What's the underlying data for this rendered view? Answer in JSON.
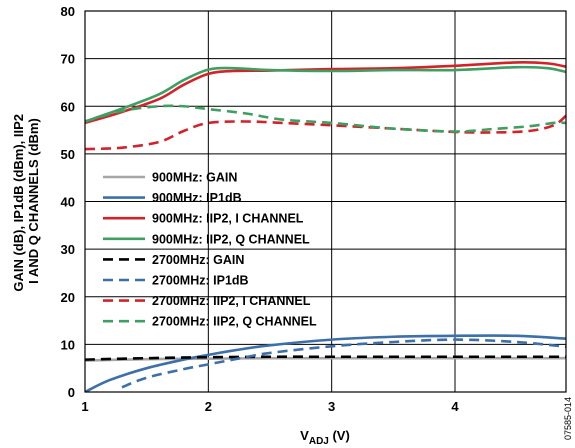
{
  "figure_id": "07585-014",
  "chart_data": {
    "type": "line",
    "xlabel_main": "V",
    "xlabel_sub": "ADJ",
    "xlabel_unit": " (V)",
    "ylabel_lines": [
      "GAIN (dB), IP1dB (dBm), IIP2",
      "I AND Q CHANNELS (dBm)"
    ],
    "xlim": [
      1,
      4.9
    ],
    "ylim": [
      0,
      80
    ],
    "x_ticks": [
      1,
      2,
      3,
      4
    ],
    "y_ticks": [
      0,
      10,
      20,
      30,
      40,
      50,
      60,
      70,
      80
    ],
    "grid": true,
    "legend_position": "center-left",
    "series": [
      {
        "name": "900MHz: GAIN",
        "color": "#a6a6a6",
        "dash": "solid",
        "x": [
          1.0,
          1.5,
          2.0,
          2.5,
          3.0,
          3.5,
          4.0,
          4.5,
          4.9
        ],
        "y": [
          6.6,
          6.9,
          7.0,
          7.1,
          7.1,
          7.1,
          7.1,
          7.1,
          7.1
        ]
      },
      {
        "name": "900MHz: IP1dB",
        "color": "#3d6fa8",
        "dash": "solid",
        "x": [
          1.0,
          1.2,
          1.5,
          1.8,
          2.0,
          2.2,
          2.5,
          3.0,
          3.5,
          4.0,
          4.5,
          4.9
        ],
        "y": [
          0,
          2.5,
          5.0,
          6.8,
          7.8,
          8.7,
          9.8,
          11.0,
          11.6,
          11.8,
          11.8,
          11.2
        ]
      },
      {
        "name": "900MHz: IIP2, I CHANNEL",
        "color": "#d2232a",
        "dash": "solid",
        "x": [
          1.0,
          1.3,
          1.6,
          1.8,
          2.0,
          2.2,
          2.5,
          3.0,
          3.5,
          4.0,
          4.5,
          4.75,
          4.9
        ],
        "y": [
          56.5,
          58.8,
          61.5,
          64.5,
          66.8,
          67.4,
          67.5,
          67.8,
          68.0,
          68.5,
          69.2,
          69.0,
          68.3
        ]
      },
      {
        "name": "900MHz: IIP2, Q CHANNEL",
        "color": "#3f9f62",
        "dash": "solid",
        "x": [
          1.0,
          1.3,
          1.6,
          1.8,
          2.0,
          2.2,
          2.5,
          3.0,
          3.5,
          4.0,
          4.5,
          4.75,
          4.9
        ],
        "y": [
          56.8,
          59.5,
          62.5,
          65.5,
          67.7,
          68.0,
          67.6,
          67.4,
          67.6,
          67.6,
          68.2,
          68.0,
          67.2
        ]
      },
      {
        "name": "2700MHz: GAIN",
        "color": "#000000",
        "dash": "dashed",
        "x": [
          1.0,
          1.5,
          2.0,
          2.5,
          3.0,
          3.5,
          4.0,
          4.5,
          4.9
        ],
        "y": [
          6.8,
          7.1,
          7.3,
          7.4,
          7.4,
          7.4,
          7.4,
          7.4,
          7.4
        ]
      },
      {
        "name": "2700MHz: IP1dB",
        "color": "#3d6fa8",
        "dash": "dashed",
        "x": [
          1.3,
          1.5,
          1.8,
          2.0,
          2.3,
          2.5,
          3.0,
          3.5,
          4.0,
          4.5,
          4.9
        ],
        "y": [
          1.0,
          3.0,
          4.8,
          5.8,
          7.3,
          8.2,
          9.6,
          10.5,
          11.0,
          10.5,
          9.5
        ]
      },
      {
        "name": "2700MHz: IIP2, I CHANNEL",
        "color": "#d2232a",
        "dash": "dashed",
        "x": [
          1.0,
          1.3,
          1.6,
          1.8,
          2.0,
          2.3,
          2.6,
          3.0,
          3.5,
          4.0,
          4.3,
          4.6,
          4.8,
          4.9
        ],
        "y": [
          51.0,
          51.3,
          52.5,
          54.8,
          56.5,
          56.8,
          56.5,
          56.0,
          55.3,
          54.6,
          54.5,
          54.8,
          56.0,
          58.0
        ]
      },
      {
        "name": "2700MHz: IIP2, Q CHANNEL",
        "color": "#3f9f62",
        "dash": "dashed",
        "x": [
          1.0,
          1.3,
          1.6,
          1.8,
          2.0,
          2.3,
          2.6,
          3.0,
          3.5,
          4.0,
          4.3,
          4.6,
          4.8,
          4.9
        ],
        "y": [
          56.8,
          59.0,
          60.0,
          60.0,
          59.4,
          58.5,
          57.2,
          56.5,
          55.3,
          54.7,
          55.2,
          55.8,
          56.5,
          56.5
        ]
      }
    ]
  }
}
